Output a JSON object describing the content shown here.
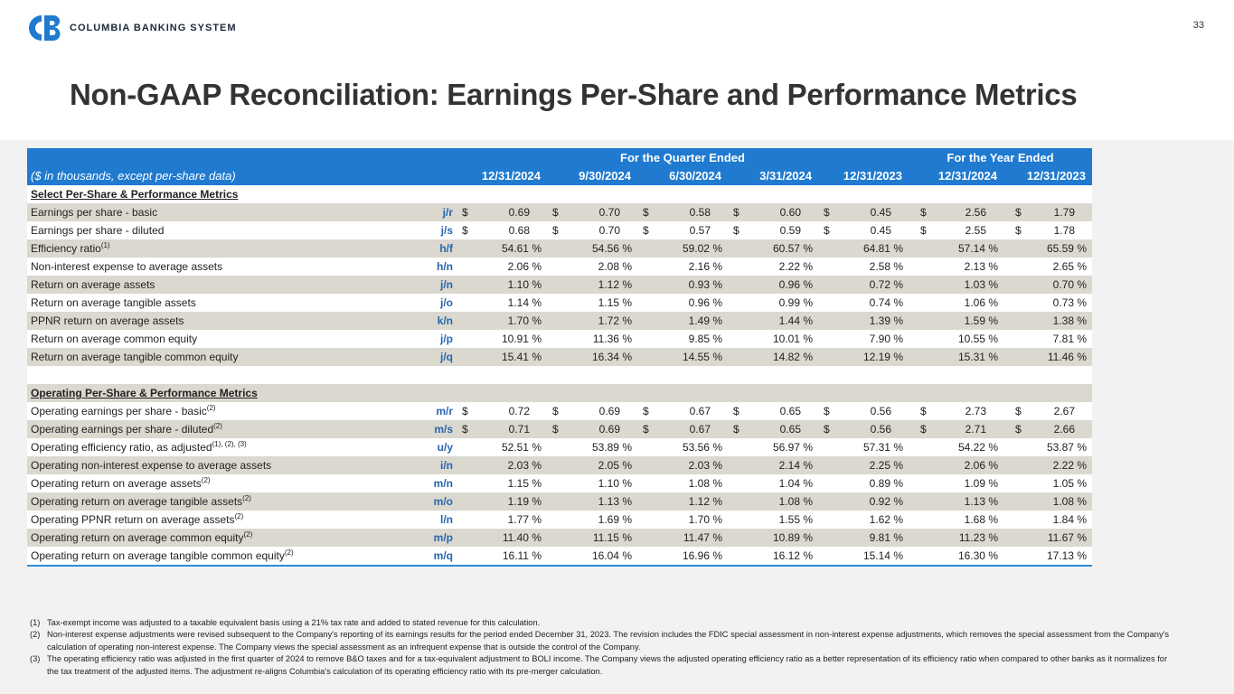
{
  "header": {
    "logo_text": "COLUMBIA BANKING SYSTEM",
    "page_number": "33",
    "title": "Non-GAAP Reconciliation: Earnings Per-Share and Performance Metrics"
  },
  "table": {
    "group_headers": [
      "For the Quarter Ended",
      "For the Year Ended"
    ],
    "unit_note": "($ in thousands, except per-share data)",
    "columns": [
      "12/31/2024",
      "9/30/2024",
      "6/30/2024",
      "3/31/2024",
      "12/31/2023",
      "12/31/2024",
      "12/31/2023"
    ],
    "sections": [
      {
        "title": "Select Per-Share & Performance Metrics",
        "rows": [
          {
            "label": "Earnings per share - basic",
            "ref": "j/r",
            "currency": "$",
            "values": [
              "0.69",
              "0.70",
              "0.58",
              "0.60",
              "0.45",
              "2.56",
              "1.79"
            ]
          },
          {
            "label": "Earnings per share - diluted",
            "ref": "j/s",
            "currency": "$",
            "values": [
              "0.68",
              "0.70",
              "0.57",
              "0.59",
              "0.45",
              "2.55",
              "1.78"
            ]
          },
          {
            "label": "Efficiency ratio",
            "note": "(1)",
            "ref": "h/f",
            "values": [
              "54.61 %",
              "54.56 %",
              "59.02 %",
              "60.57 %",
              "64.81 %",
              "57.14 %",
              "65.59 %"
            ]
          },
          {
            "label": "Non-interest expense to average assets",
            "ref": "h/n",
            "values": [
              "2.06 %",
              "2.08 %",
              "2.16 %",
              "2.22 %",
              "2.58 %",
              "2.13 %",
              "2.65 %"
            ]
          },
          {
            "label": "Return on average assets",
            "ref": "j/n",
            "values": [
              "1.10 %",
              "1.12 %",
              "0.93 %",
              "0.96 %",
              "0.72 %",
              "1.03 %",
              "0.70 %"
            ]
          },
          {
            "label": "Return on average tangible assets",
            "ref": "j/o",
            "values": [
              "1.14 %",
              "1.15 %",
              "0.96 %",
              "0.99 %",
              "0.74 %",
              "1.06 %",
              "0.73 %"
            ]
          },
          {
            "label": "PPNR return on average assets",
            "ref": "k/n",
            "values": [
              "1.70 %",
              "1.72 %",
              "1.49 %",
              "1.44 %",
              "1.39 %",
              "1.59 %",
              "1.38 %"
            ]
          },
          {
            "label": "Return on average common equity",
            "ref": "j/p",
            "values": [
              "10.91 %",
              "11.36 %",
              "9.85 %",
              "10.01 %",
              "7.90 %",
              "10.55 %",
              "7.81 %"
            ]
          },
          {
            "label": "Return on average tangible common equity",
            "ref": "j/q",
            "values": [
              "15.41 %",
              "16.34 %",
              "14.55 %",
              "14.82 %",
              "12.19 %",
              "15.31 %",
              "11.46 %"
            ]
          }
        ]
      },
      {
        "title": "Operating Per-Share & Performance Metrics",
        "rows": [
          {
            "label": "Operating earnings per share - basic",
            "note": "(2)",
            "ref": "m/r",
            "currency": "$",
            "values": [
              "0.72",
              "0.69",
              "0.67",
              "0.65",
              "0.56",
              "2.73",
              "2.67"
            ]
          },
          {
            "label": "Operating earnings per share - diluted",
            "note": "(2)",
            "ref": "m/s",
            "currency": "$",
            "values": [
              "0.71",
              "0.69",
              "0.67",
              "0.65",
              "0.56",
              "2.71",
              "2.66"
            ]
          },
          {
            "label": "Operating efficiency ratio, as adjusted",
            "note": "(1), (2), (3)",
            "ref": "u/y",
            "values": [
              "52.51 %",
              "53.89 %",
              "53.56 %",
              "56.97 %",
              "57.31 %",
              "54.22 %",
              "53.87 %"
            ]
          },
          {
            "label": "Operating non-interest expense to average assets",
            "ref": "i/n",
            "values": [
              "2.03 %",
              "2.05 %",
              "2.03 %",
              "2.14 %",
              "2.25 %",
              "2.06 %",
              "2.22 %"
            ]
          },
          {
            "label": "Operating return on average assets",
            "note": "(2)",
            "ref": "m/n",
            "values": [
              "1.15 %",
              "1.10 %",
              "1.08 %",
              "1.04 %",
              "0.89 %",
              "1.09 %",
              "1.05 %"
            ]
          },
          {
            "label": "Operating return on average tangible assets",
            "note": "(2)",
            "ref": "m/o",
            "values": [
              "1.19 %",
              "1.13 %",
              "1.12 %",
              "1.08 %",
              "0.92 %",
              "1.13 %",
              "1.08 %"
            ]
          },
          {
            "label": "Operating PPNR return on average assets",
            "note": "(2)",
            "ref": "l/n",
            "values": [
              "1.77 %",
              "1.69 %",
              "1.70 %",
              "1.55 %",
              "1.62 %",
              "1.68 %",
              "1.84 %"
            ]
          },
          {
            "label": "Operating return on average common equity",
            "note": "(2)",
            "ref": "m/p",
            "values": [
              "11.40 %",
              "11.15 %",
              "11.47 %",
              "10.89 %",
              "9.81 %",
              "11.23 %",
              "11.67 %"
            ]
          },
          {
            "label": "Operating return on average tangible common equity",
            "note": "(2)",
            "ref": "m/q",
            "values": [
              "16.11 %",
              "16.04 %",
              "16.96 %",
              "16.12 %",
              "15.14 %",
              "16.30 %",
              "17.13 %"
            ]
          }
        ]
      }
    ]
  },
  "footnotes": [
    {
      "marker": "(1)",
      "text": "Tax-exempt income was adjusted to a taxable equivalent basis using a 21% tax rate and added to stated revenue for this calculation."
    },
    {
      "marker": "(2)",
      "text": "Non-interest expense adjustments were revised subsequent to the Company's reporting of its earnings results for the period ended December 31, 2023. The revision includes the FDIC special assessment in non-interest expense adjustments, which removes the special assessment from the Company's calculation of operating non-interest expense. The Company views the special assessment as an infrequent expense that is outside the control of the Company."
    },
    {
      "marker": "(3)",
      "text": "The operating efficiency ratio was adjusted in the first quarter of 2024 to remove B&O taxes and for a tax-equivalent adjustment to BOLI income. The Company views the adjusted operating efficiency ratio as a better representation of its efficiency ratio when compared to other banks as it normalizes for the tax treatment of the adjusted items. The adjustment re-aligns Columbia's calculation of its operating efficiency ratio with its pre-merger calculation."
    }
  ]
}
